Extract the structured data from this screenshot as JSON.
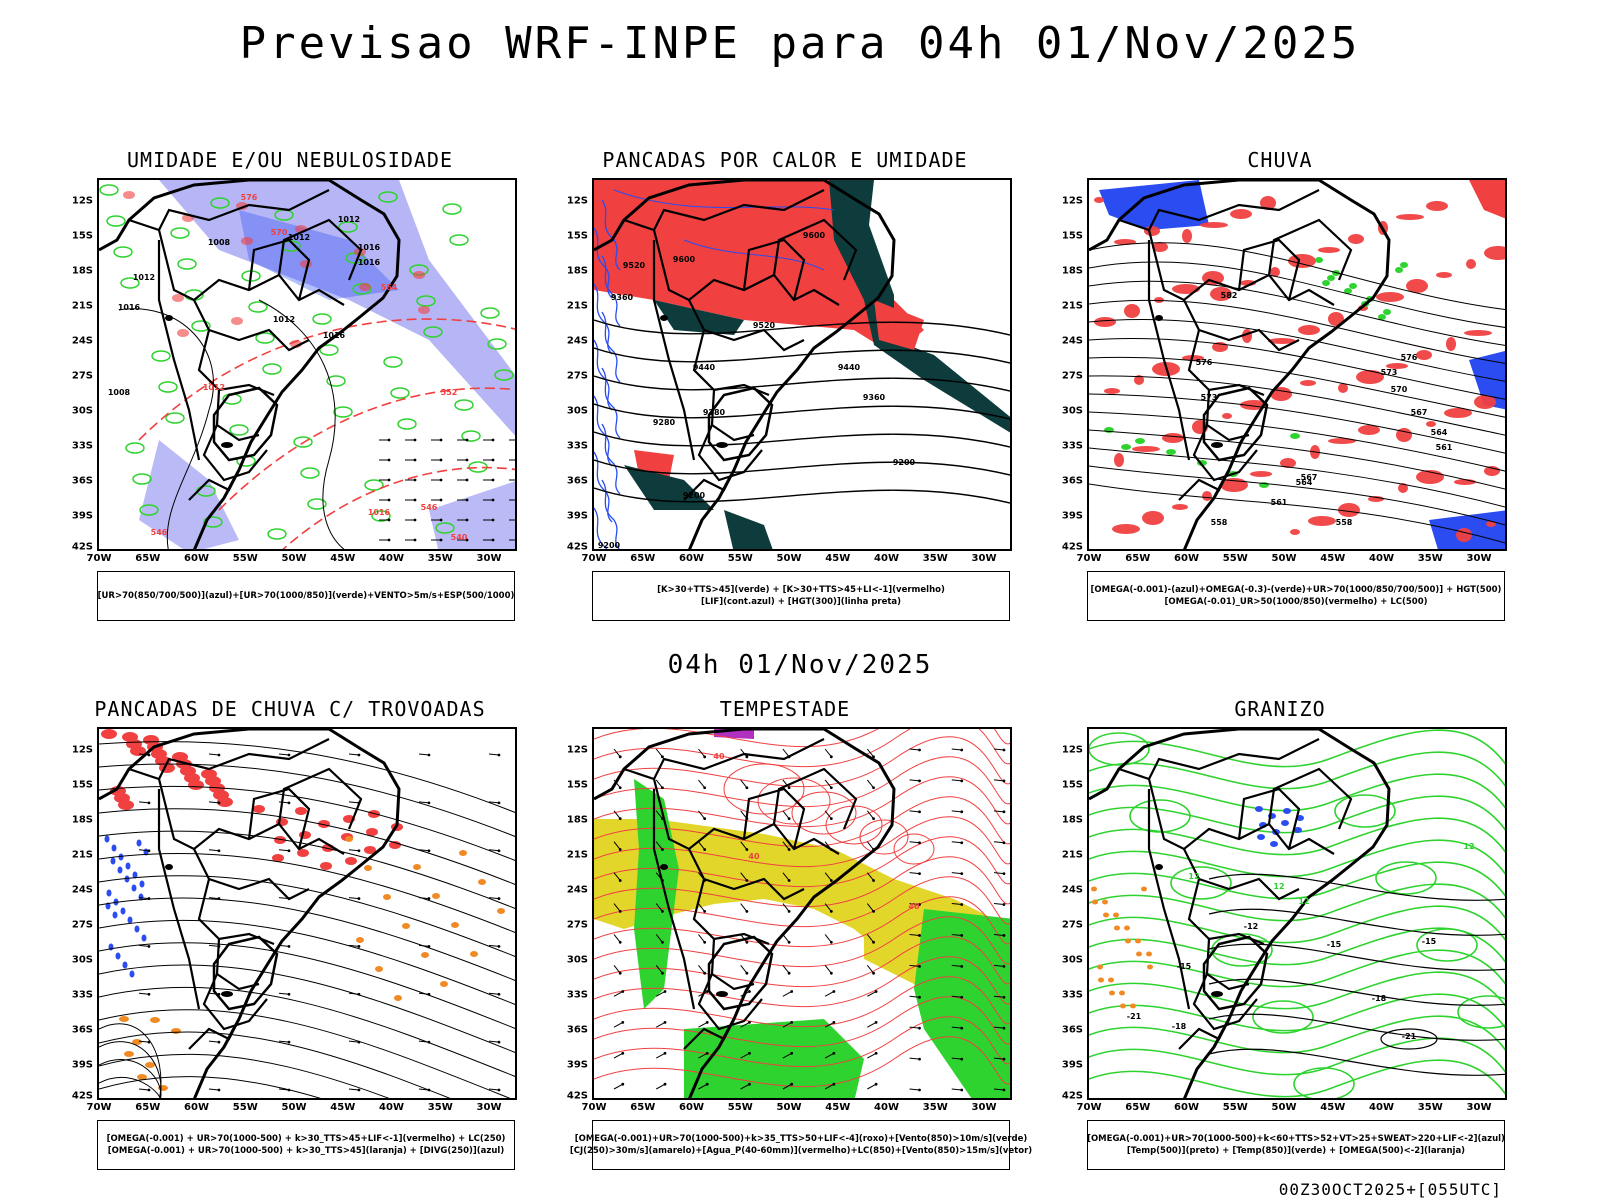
{
  "header": {
    "title": "Previsao WRF-INPE  para 04h 01/Nov/2025"
  },
  "mid_date": "04h 01/Nov/2025",
  "footer_code": "00Z30OCT2025+[055UTC]",
  "axes": {
    "lat_ticks": [
      "12S",
      "15S",
      "18S",
      "21S",
      "24S",
      "27S",
      "30S",
      "33S",
      "36S",
      "39S",
      "42S"
    ],
    "lon_ticks": [
      "70W",
      "65W",
      "60W",
      "55W",
      "50W",
      "45W",
      "40W",
      "35W",
      "30W"
    ]
  },
  "colors": {
    "blue": "#2a4cf0",
    "lavender": "#a9a9f5",
    "green": "#2fd32f",
    "red": "#f04040",
    "darkteal": "#0e3b3b",
    "yellow": "#e3d62b",
    "orange": "#f08a24",
    "purple": "#b030c0"
  },
  "panels": [
    {
      "id": "umidade",
      "title": "UMIDADE E/OU NEBULOSIDADE",
      "legend": [
        "[UR>70(850/700/500)](azul)+[UR>70(1000/850)](verde)+VENTO>5m/s+ESP(500/1000)"
      ],
      "contour_labels": [
        "1012",
        "1016",
        "1008",
        "1012",
        "1016",
        "1012",
        "1016",
        "1012",
        "1016",
        "1008",
        "1012",
        "1016",
        "576",
        "570",
        "564",
        "552",
        "546",
        "540",
        "546"
      ]
    },
    {
      "id": "pancadas-calor",
      "title": "PANCADAS POR CALOR E UMIDADE",
      "legend": [
        "[K>30+TTS>45](verde)  +  [K>30+TTS>45+LI<-1](vermelho)",
        "[LIF](cont.azul)  +  [HGT(300)](linha preta)"
      ],
      "contour_labels": [
        "9600",
        "9600",
        "9520",
        "9440",
        "9520",
        "9440",
        "9360",
        "9360",
        "9280",
        "9200",
        "9280",
        "9200",
        "9200"
      ]
    },
    {
      "id": "chuva",
      "title": "CHUVA",
      "legend": [
        "[OMEGA(-0.001)-(azul)+OMEGA(-0.3)-(verde)+UR>70(1000/850/700/500)]  +  HGT(500)",
        "[OMEGA(-0.01)_UR>50(1000/850)(vermelho)  +  LC(500)"
      ],
      "contour_labels": [
        "582",
        "576",
        "573",
        "576",
        "573",
        "570",
        "567",
        "564",
        "561",
        "567",
        "564",
        "561",
        "558",
        "558"
      ]
    },
    {
      "id": "pancadas-trovoadas",
      "title": "PANCADAS DE CHUVA C/ TROVOADAS",
      "legend": [
        "[OMEGA(-0.001)  +  UR>70(1000-500)  +  k>30_TTS>45+LIF<-1](vermelho)  +  LC(250)",
        "[OMEGA(-0.001)  +  UR>70(1000-500)  +  k>30_TTS>45](laranja)  +  [DIVG(250)](azul)"
      ],
      "contour_labels": []
    },
    {
      "id": "tempestade",
      "title": "TEMPESTADE",
      "legend": [
        "[OMEGA(-0.001)+UR>70(1000-500)+k>35_TTS>50+LIF<-4](roxo)+[Vento(850)>10m/s](verde)",
        "[CJ(250)>30m/s](amarelo)+[Agua_P(40-60mm)](vermelho)+LC(850)+[Vento(850)>15m/s](vetor)"
      ],
      "contour_labels": [
        "40",
        "40",
        "40"
      ]
    },
    {
      "id": "granizo",
      "title": "GRANIZO",
      "legend": [
        "[OMEGA(-0.001)+UR>70(1000-500)+k<60+TTS>52+VT>25+SWEAT>220+LIF<-2](azul)",
        "[Temp(500)](preto)  +  [Temp(850)](verde)  +  [OMEGA(500)<-2](laranja)"
      ],
      "contour_labels": [
        "12",
        "12",
        "12",
        "-12",
        "-15",
        "-15",
        "-15",
        "-18",
        "-18",
        "-21",
        "-21",
        "12"
      ]
    }
  ]
}
